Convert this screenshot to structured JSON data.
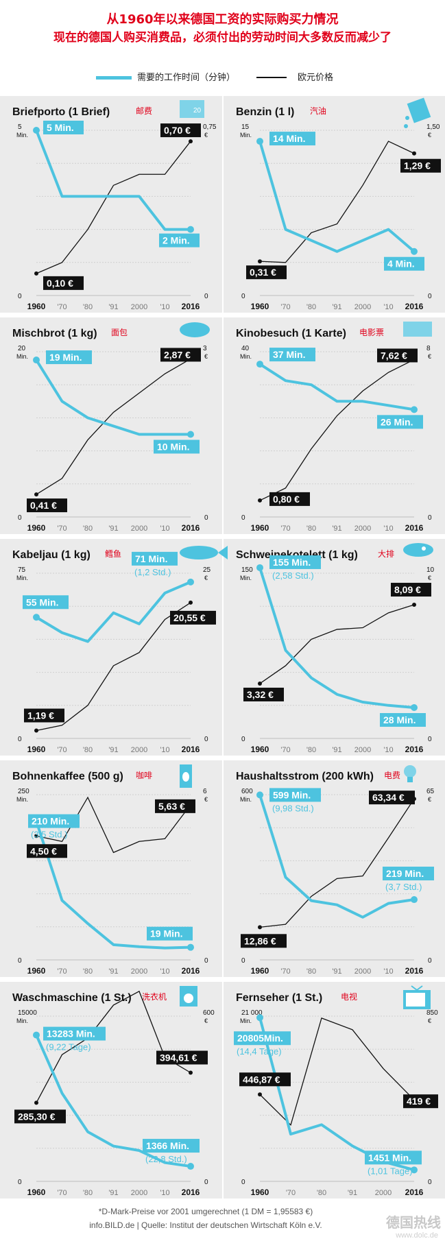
{
  "header": {
    "line1": "从1960年以来德国工资的实际购买力情况",
    "line2": "现在的德国人购买消费品，必须付出的劳动时间大多数反而减少了"
  },
  "legend": {
    "blue_label": "需要的工作时间（分钟）",
    "black_label": "欧元价格"
  },
  "colors": {
    "blue": "#4dc3df",
    "black": "#111111",
    "red": "#e0001a",
    "panel_bg": "#ebebeb"
  },
  "footer": {
    "note": "*D-Mark-Preise vor 2001 umgerechnet (1 DM = 1,95583 €)",
    "source": "info.BILD.de | Quelle:  Institut der deutschen Wirtschaft Köln e.V."
  },
  "watermark": {
    "text": "德国热线",
    "url": "www.dolc.de"
  },
  "chart_data": [
    {
      "type": "line",
      "title": "Briefporto (1 Brief)",
      "title_cn": "邮费",
      "icon": "stamp-icon",
      "x_ticks": [
        "1960",
        "'70",
        "'80",
        "'91",
        "2000",
        "'10",
        "2016"
      ],
      "x_bold": [
        true,
        false,
        false,
        false,
        false,
        false,
        true
      ],
      "left_axis": {
        "max": 5,
        "max_label": "5",
        "unit": "Min.",
        "zero": "0"
      },
      "right_axis": {
        "max": 0.75,
        "max_label": "0,75",
        "unit": "€",
        "zero": "0"
      },
      "series": [
        {
          "label": "minutes",
          "color": "blue",
          "values": [
            5,
            3,
            3,
            3,
            3,
            2,
            2
          ]
        },
        {
          "label": "price",
          "color": "black",
          "values": [
            0.1,
            0.15,
            0.3,
            0.5,
            0.55,
            0.55,
            0.7
          ]
        }
      ],
      "labels": {
        "blue_start": {
          "text": "5 Min."
        },
        "blue_end": {
          "text": "2 Min."
        },
        "black_start": {
          "text": "0,10 €"
        },
        "black_end": {
          "text": "0,70 €"
        }
      }
    },
    {
      "type": "line",
      "title": "Benzin (1 l)",
      "title_cn": "汽油",
      "icon": "fuel-can-icon",
      "x_ticks": [
        "1960",
        "'70",
        "'80",
        "'91",
        "2000",
        "'10",
        "2016"
      ],
      "x_bold": [
        true,
        false,
        false,
        false,
        false,
        false,
        true
      ],
      "left_axis": {
        "max": 15,
        "max_label": "15",
        "unit": "Min.",
        "zero": "0"
      },
      "right_axis": {
        "max": 1.5,
        "max_label": "1,50",
        "unit": "€",
        "zero": "0"
      },
      "series": [
        {
          "label": "minutes",
          "color": "blue",
          "values": [
            14,
            6,
            5,
            4,
            5,
            6,
            4
          ]
        },
        {
          "label": "price",
          "color": "black",
          "values": [
            0.31,
            0.3,
            0.57,
            0.65,
            1.0,
            1.4,
            1.29
          ]
        }
      ],
      "labels": {
        "blue_start": {
          "text": "14 Min."
        },
        "blue_end": {
          "text": "4 Min."
        },
        "black_start": {
          "text": "0,31 €"
        },
        "black_end": {
          "text": "1,29 €"
        }
      }
    },
    {
      "type": "line",
      "title": "Mischbrot (1 kg)",
      "title_cn": "面包",
      "icon": "bread-icon",
      "x_ticks": [
        "1960",
        "'70",
        "'80",
        "'91",
        "2000",
        "'10",
        "2016"
      ],
      "x_bold": [
        true,
        false,
        false,
        false,
        false,
        false,
        true
      ],
      "left_axis": {
        "max": 20,
        "max_label": "20",
        "unit": "Min.",
        "zero": "0"
      },
      "right_axis": {
        "max": 3,
        "max_label": "3",
        "unit": "€",
        "zero": "0"
      },
      "series": [
        {
          "label": "minutes",
          "color": "blue",
          "values": [
            19,
            14,
            12,
            11,
            10,
            10,
            10
          ]
        },
        {
          "label": "price",
          "color": "black",
          "values": [
            0.41,
            0.7,
            1.4,
            1.9,
            2.25,
            2.6,
            2.87
          ]
        }
      ],
      "labels": {
        "blue_start": {
          "text": "19 Min."
        },
        "blue_end": {
          "text": "10 Min."
        },
        "black_start": {
          "text": "0,41 €"
        },
        "black_end": {
          "text": "2,87 €"
        }
      }
    },
    {
      "type": "line",
      "title": "Kinobesuch (1 Karte)",
      "title_cn": "电影票",
      "icon": "ticket-icon",
      "x_ticks": [
        "1960",
        "'70",
        "'80",
        "'91",
        "2000",
        "'10",
        "2016"
      ],
      "x_bold": [
        true,
        false,
        false,
        false,
        false,
        false,
        true
      ],
      "left_axis": {
        "max": 40,
        "max_label": "40",
        "unit": "Min.",
        "zero": "0"
      },
      "right_axis": {
        "max": 8,
        "max_label": "8",
        "unit": "€",
        "zero": "0"
      },
      "series": [
        {
          "label": "minutes",
          "color": "blue",
          "values": [
            37,
            33,
            32,
            28,
            28,
            27,
            26
          ]
        },
        {
          "label": "price",
          "color": "black",
          "values": [
            0.8,
            1.4,
            3.3,
            4.9,
            6.1,
            7.0,
            7.62
          ]
        }
      ],
      "labels": {
        "blue_start": {
          "text": "37 Min."
        },
        "blue_end": {
          "text": "26 Min."
        },
        "black_start": {
          "text": "0,80 €"
        },
        "black_end": {
          "text": "7,62 €"
        }
      }
    },
    {
      "type": "line",
      "title": "Kabeljau (1 kg)",
      "title_cn": "鳕鱼",
      "icon": "fish-icon",
      "x_ticks": [
        "1960",
        "'70",
        "'80",
        "'91",
        "2000",
        "'10",
        "2016"
      ],
      "x_bold": [
        true,
        false,
        false,
        false,
        false,
        false,
        true
      ],
      "left_axis": {
        "max": 75,
        "max_label": "75",
        "unit": "Min.",
        "zero": "0"
      },
      "right_axis": {
        "max": 25,
        "max_label": "25",
        "unit": "€",
        "zero": "0"
      },
      "series": [
        {
          "label": "minutes",
          "color": "blue",
          "values": [
            55,
            48,
            44,
            57,
            52,
            66,
            71
          ]
        },
        {
          "label": "price",
          "color": "black",
          "values": [
            1.19,
            2.0,
            5.0,
            11.0,
            13.0,
            18.0,
            20.55
          ]
        }
      ],
      "labels": {
        "blue_start": {
          "text": "55 Min."
        },
        "blue_end": {
          "text": "71 Min.",
          "sub": "(1,2 Std.)"
        },
        "black_start": {
          "text": "1,19 €"
        },
        "black_end": {
          "text": "20,55 €"
        }
      }
    },
    {
      "type": "line",
      "title": "Schweinekotelett (1 kg)",
      "title_cn": "大排",
      "icon": "meat-icon",
      "x_ticks": [
        "1960",
        "'70",
        "'80",
        "'91",
        "2000",
        "'10",
        "2016"
      ],
      "x_bold": [
        true,
        false,
        false,
        false,
        false,
        false,
        true
      ],
      "left_axis": {
        "max": 150,
        "max_label": "150",
        "unit": "Min.",
        "zero": "0"
      },
      "right_axis": {
        "max": 10,
        "max_label": "10",
        "unit": "€",
        "zero": "0"
      },
      "series": [
        {
          "label": "minutes",
          "color": "blue",
          "values": [
            155,
            80,
            55,
            40,
            33,
            30,
            28
          ]
        },
        {
          "label": "price",
          "color": "black",
          "values": [
            3.32,
            4.4,
            6.0,
            6.6,
            6.7,
            7.6,
            8.09
          ]
        }
      ],
      "labels": {
        "blue_start": {
          "text": "155 Min.",
          "sub": "(2,58 Std.)"
        },
        "blue_end": {
          "text": "28 Min."
        },
        "black_start": {
          "text": "3,32 €"
        },
        "black_end": {
          "text": "8,09 €"
        }
      }
    },
    {
      "type": "line",
      "title": "Bohnenkaffee (500 g)",
      "title_cn": "咖啡",
      "icon": "coffee-pack-icon",
      "x_ticks": [
        "1960",
        "'70",
        "'80",
        "'91",
        "2000",
        "'10",
        "2016"
      ],
      "x_bold": [
        true,
        false,
        false,
        false,
        false,
        false,
        true
      ],
      "left_axis": {
        "max": 250,
        "max_label": "250",
        "unit": "Min.",
        "zero": "0"
      },
      "right_axis": {
        "max": 6,
        "max_label": "6",
        "unit": "€",
        "zero": "0"
      },
      "series": [
        {
          "label": "minutes",
          "color": "blue",
          "values": [
            210,
            90,
            55,
            23,
            20,
            18,
            19
          ]
        },
        {
          "label": "price",
          "color": "black",
          "values": [
            4.5,
            4.3,
            5.9,
            3.9,
            4.3,
            4.4,
            5.63
          ]
        }
      ],
      "labels": {
        "blue_start": {
          "text": "210 Min.",
          "sub": "(3,5 Std.)"
        },
        "blue_end": {
          "text": "19 Min."
        },
        "black_start": {
          "text": "4,50 €"
        },
        "black_end": {
          "text": "5,63 €"
        }
      }
    },
    {
      "type": "line",
      "title": "Haushaltsstrom (200 kWh)",
      "title_cn": "电费",
      "icon": "lightbulb-icon",
      "x_ticks": [
        "1960",
        "'70",
        "'80",
        "'91",
        "2000",
        "'10",
        "2016"
      ],
      "x_bold": [
        true,
        false,
        false,
        false,
        false,
        false,
        true
      ],
      "left_axis": {
        "max": 600,
        "max_label": "600",
        "unit": "Min.",
        "zero": "0"
      },
      "right_axis": {
        "max": 65,
        "max_label": "65",
        "unit": "€",
        "zero": "0"
      },
      "series": [
        {
          "label": "minutes",
          "color": "blue",
          "values": [
            599,
            300,
            215,
            200,
            155,
            205,
            219
          ]
        },
        {
          "label": "price",
          "color": "black",
          "values": [
            12.86,
            14.0,
            25.0,
            32.0,
            33.0,
            48.0,
            63.34
          ]
        }
      ],
      "labels": {
        "blue_start": {
          "text": "599 Min.",
          "sub": "(9,98 Std.)"
        },
        "blue_end": {
          "text": "219 Min.",
          "sub": "(3,7 Std.)"
        },
        "black_start": {
          "text": "12,86 €"
        },
        "black_end": {
          "text": "63,34 €"
        }
      }
    },
    {
      "type": "line",
      "title": "Waschmaschine (1 St.)",
      "title_cn": "洗衣机",
      "icon": "washing-machine-icon",
      "x_ticks": [
        "1960",
        "'70",
        "'80",
        "'91",
        "2000",
        "'10",
        "2016"
      ],
      "x_bold": [
        true,
        false,
        false,
        false,
        false,
        false,
        true
      ],
      "left_axis": {
        "max": 15000,
        "max_label": "15000",
        "unit": "Min.",
        "zero": "0"
      },
      "right_axis": {
        "max": 600,
        "max_label": "600",
        "unit": "€",
        "zero": "0"
      },
      "series": [
        {
          "label": "minutes",
          "color": "blue",
          "values": [
            13283,
            8000,
            4500,
            3200,
            2800,
            1700,
            1366
          ]
        },
        {
          "label": "price",
          "color": "black",
          "values": [
            285.3,
            460,
            520,
            640,
            690,
            450,
            394.61
          ]
        }
      ],
      "labels": {
        "blue_start": {
          "text": "13283 Min.",
          "sub": "(9,22 Tage)"
        },
        "blue_end": {
          "text": "1366 Min.",
          "sub": "(22,8 Std.)"
        },
        "black_start": {
          "text": "285,30 €"
        },
        "black_end": {
          "text": "394,61 €"
        }
      }
    },
    {
      "type": "line",
      "title": "Fernseher (1 St.)",
      "title_cn": "电视",
      "icon": "tv-icon",
      "x_ticks": [
        "1960",
        "'70",
        "'80",
        "'91",
        "2000",
        "2016"
      ],
      "x_bold": [
        true,
        false,
        false,
        false,
        false,
        true
      ],
      "left_axis": {
        "max": 21000,
        "max_label": "21 000",
        "unit": "Min.",
        "zero": "0"
      },
      "right_axis": {
        "max": 850,
        "max_label": "850",
        "unit": "€",
        "zero": "0"
      },
      "series": [
        {
          "label": "minutes",
          "color": "blue",
          "values": [
            20805,
            6000,
            7200,
            4500,
            2500,
            1451
          ]
        },
        {
          "label": "price",
          "color": "black",
          "values": [
            446.87,
            290,
            840,
            780,
            580,
            419
          ]
        }
      ],
      "labels": {
        "blue_start": {
          "text": "20805Min.",
          "sub": "(14,4 Tage)"
        },
        "blue_end": {
          "text": "1451 Min.",
          "sub": "(1,01 Tage)"
        },
        "black_start": {
          "text": "446,87 €"
        },
        "black_end": {
          "text": "419 €"
        }
      }
    }
  ]
}
